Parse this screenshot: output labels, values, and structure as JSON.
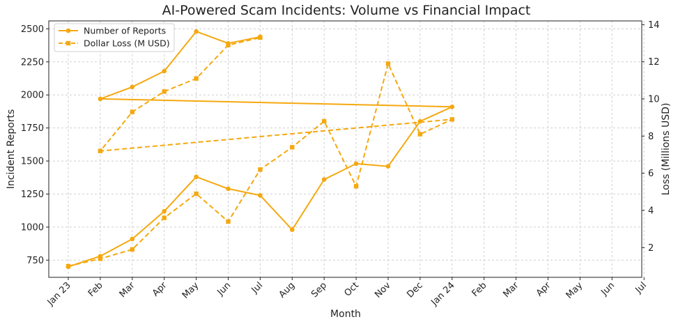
{
  "chart_data": {
    "type": "line",
    "title": "AI-Powered Scam Incidents: Volume vs Financial Impact",
    "xlabel": "Month",
    "ylabel": "Incident Reports",
    "y2label": "Loss (Millions USD)",
    "x_ticks": [
      "Jan 23",
      "Feb",
      "Mar",
      "Apr",
      "May",
      "Jun",
      "Jul",
      "Aug",
      "Sep",
      "Oct",
      "Nov",
      "Dec",
      "Jan 24",
      "Feb",
      "Mar",
      "Apr",
      "May",
      "Jun",
      "Jul"
    ],
    "ylim": [
      620,
      2560
    ],
    "y_ticks": [
      750,
      1000,
      1250,
      1500,
      1750,
      2000,
      2250,
      2500
    ],
    "y2lim": [
      0.4,
      14.2
    ],
    "y2_ticks": [
      2,
      4,
      6,
      8,
      10,
      12,
      14
    ],
    "grid": true,
    "legend_position": "top-left",
    "series": [
      {
        "name": "Number of Reports",
        "axis": "left",
        "style": "solid",
        "marker": "circle",
        "color": "#f5a80f",
        "x": [
          0,
          1,
          2,
          3,
          4,
          5,
          6,
          7,
          8,
          9,
          10,
          11,
          12,
          1,
          2,
          3,
          4,
          5,
          6
        ],
        "values": [
          700,
          780,
          910,
          1120,
          1380,
          1290,
          1240,
          980,
          1360,
          1480,
          1460,
          1800,
          1910,
          1970,
          2060,
          2180,
          2480,
          2390,
          2440
        ]
      },
      {
        "name": "Dollar Loss (M USD)",
        "axis": "right",
        "style": "dashed",
        "marker": "square",
        "color": "#f5a80f",
        "x": [
          0,
          1,
          2,
          3,
          4,
          5,
          6,
          7,
          8,
          9,
          10,
          11,
          12,
          1,
          2,
          3,
          4,
          5,
          6
        ],
        "values": [
          1.0,
          1.4,
          1.9,
          3.6,
          4.9,
          3.4,
          6.2,
          7.4,
          8.8,
          5.3,
          11.9,
          8.1,
          8.9,
          7.2,
          9.3,
          10.4,
          11.1,
          12.9,
          13.3
        ]
      }
    ]
  }
}
